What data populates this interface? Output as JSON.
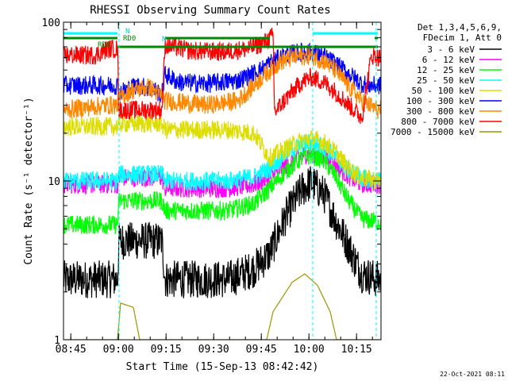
{
  "chart_data": {
    "type": "line",
    "title": "RHESSI Observing Summary Count Rates",
    "xlabel": "Start Time (15-Sep-13 08:42:42)",
    "ylabel": "Count Rate (s⁻¹ detector⁻¹)",
    "yscale": "log",
    "ylim": [
      1,
      100
    ],
    "xlim_minutes": [
      0,
      100
    ],
    "x_ticks": [
      {
        "label": "08:45",
        "value": 2.3
      },
      {
        "label": "09:00",
        "value": 17.3
      },
      {
        "label": "09:15",
        "value": 32.3
      },
      {
        "label": "09:30",
        "value": 47.3
      },
      {
        "label": "09:45",
        "value": 62.3
      },
      {
        "label": "10:00",
        "value": 77.3
      },
      {
        "label": "10:15",
        "value": 92.3
      }
    ],
    "y_ticks": [
      {
        "label": "1",
        "value": 1
      },
      {
        "label": "10",
        "value": 10
      },
      {
        "label": "100",
        "value": 100
      }
    ],
    "legend": {
      "header": [
        "Det 1,3,4,5,6,9,",
        "FDecim 1, Att 0"
      ],
      "placement": "right"
    },
    "series": [
      {
        "name": "3 - 6 keV",
        "color": "#000000",
        "points": [
          [
            0,
            2.4
          ],
          [
            17,
            2.4
          ],
          [
            17.5,
            4.2
          ],
          [
            31,
            4.2
          ],
          [
            32,
            2.4
          ],
          [
            52,
            2.4
          ],
          [
            60,
            2.8
          ],
          [
            65,
            3.5
          ],
          [
            70,
            6
          ],
          [
            75,
            8.8
          ],
          [
            78,
            9.8
          ],
          [
            82,
            8.3
          ],
          [
            86,
            5.5
          ],
          [
            89,
            4.2
          ],
          [
            92,
            3.1
          ],
          [
            94,
            2.6
          ],
          [
            99,
            2.4
          ]
        ]
      },
      {
        "name": "6 - 12 keV",
        "color": "#ff00ff",
        "points": [
          [
            0,
            9.5
          ],
          [
            17,
            9.5
          ],
          [
            17.5,
            10.5
          ],
          [
            31,
            10.5
          ],
          [
            32,
            9
          ],
          [
            52,
            9
          ],
          [
            60,
            9.5
          ],
          [
            65,
            10.5
          ],
          [
            70,
            12.5
          ],
          [
            75,
            14.5
          ],
          [
            78,
            15
          ],
          [
            82,
            14.2
          ],
          [
            86,
            12.5
          ],
          [
            89,
            11
          ],
          [
            92,
            10
          ],
          [
            94,
            9.6
          ],
          [
            99,
            9.5
          ]
        ]
      },
      {
        "name": "12 - 25 keV",
        "color": "#00ff00",
        "points": [
          [
            0,
            5.3
          ],
          [
            17,
            5.3
          ],
          [
            17.5,
            7.5
          ],
          [
            31,
            7.5
          ],
          [
            32,
            6.5
          ],
          [
            52,
            6.5
          ],
          [
            60,
            7.2
          ],
          [
            65,
            9
          ],
          [
            70,
            11.5
          ],
          [
            75,
            14
          ],
          [
            78,
            14.5
          ],
          [
            82,
            13.5
          ],
          [
            86,
            10.5
          ],
          [
            89,
            8
          ],
          [
            92,
            6.5
          ],
          [
            94,
            5.8
          ],
          [
            99,
            5.5
          ]
        ]
      },
      {
        "name": "25 - 50 keV",
        "color": "#00ffff",
        "points": [
          [
            0,
            10
          ],
          [
            17,
            10
          ],
          [
            17.5,
            11
          ],
          [
            31,
            11
          ],
          [
            32,
            10
          ],
          [
            52,
            10
          ],
          [
            60,
            10.6
          ],
          [
            65,
            12
          ],
          [
            70,
            15
          ],
          [
            75,
            17
          ],
          [
            78,
            17.5
          ],
          [
            82,
            16.5
          ],
          [
            86,
            14
          ],
          [
            89,
            12
          ],
          [
            92,
            11
          ],
          [
            94,
            10.4
          ],
          [
            99,
            10
          ]
        ]
      },
      {
        "name": "50 - 100 keV",
        "color": "#dddd00",
        "points": [
          [
            0,
            22
          ],
          [
            17,
            22
          ],
          [
            17.5,
            23
          ],
          [
            31,
            23
          ],
          [
            32,
            21
          ],
          [
            52,
            21
          ],
          [
            60,
            20
          ],
          [
            65,
            14
          ],
          [
            70,
            16
          ],
          [
            75,
            18
          ],
          [
            78,
            18.5
          ],
          [
            82,
            17.5
          ],
          [
            86,
            15
          ],
          [
            89,
            12.5
          ],
          [
            92,
            11
          ],
          [
            94,
            10.5
          ],
          [
            99,
            10
          ]
        ]
      },
      {
        "name": "100 - 300 keV",
        "color": "#0000ff",
        "points": [
          [
            0,
            40
          ],
          [
            14,
            40
          ],
          [
            17,
            40
          ],
          [
            17.5,
            36
          ],
          [
            23,
            40
          ],
          [
            28,
            38
          ],
          [
            31,
            35
          ],
          [
            32,
            47
          ],
          [
            36,
            42
          ],
          [
            45,
            41
          ],
          [
            55,
            43
          ],
          [
            62,
            50
          ],
          [
            66,
            57
          ],
          [
            70,
            62
          ],
          [
            74,
            64.5
          ],
          [
            78,
            65
          ],
          [
            82,
            61
          ],
          [
            86,
            54
          ],
          [
            90,
            47
          ],
          [
            94,
            41
          ],
          [
            97,
            40
          ],
          [
            99,
            40
          ]
        ]
      },
      {
        "name": "300 - 800 keV",
        "color": "#ff8800",
        "points": [
          [
            0,
            28
          ],
          [
            14,
            30
          ],
          [
            17,
            30
          ],
          [
            17.5,
            33
          ],
          [
            21,
            37
          ],
          [
            27,
            39
          ],
          [
            31,
            34
          ],
          [
            32,
            32
          ],
          [
            45,
            30
          ],
          [
            55,
            32
          ],
          [
            60,
            40
          ],
          [
            64,
            48
          ],
          [
            68,
            56
          ],
          [
            72,
            60
          ],
          [
            75,
            61
          ],
          [
            78,
            61.5
          ],
          [
            82,
            57
          ],
          [
            86,
            49
          ],
          [
            90,
            39
          ],
          [
            94,
            32
          ],
          [
            99,
            28
          ]
        ]
      },
      {
        "name": "800 - 7000 keV",
        "color": "#ff0000",
        "points": [
          [
            0,
            62
          ],
          [
            10,
            62
          ],
          [
            14,
            68
          ],
          [
            17,
            68
          ],
          [
            17.5,
            28
          ],
          [
            31,
            28
          ],
          [
            32,
            72
          ],
          [
            40,
            66
          ],
          [
            50,
            65
          ],
          [
            58,
            68
          ],
          [
            63,
            74
          ],
          [
            66,
            82
          ],
          [
            66.5,
            27
          ],
          [
            70,
            33
          ],
          [
            75,
            42
          ],
          [
            78,
            45
          ],
          [
            82,
            42
          ],
          [
            86,
            36
          ],
          [
            90,
            30
          ],
          [
            94,
            25
          ],
          [
            97,
            62
          ],
          [
            99,
            60
          ]
        ]
      },
      {
        "name": "7000 - 15000 keV",
        "color": "#999900",
        "points": [
          [
            0,
            1
          ],
          [
            17,
            1
          ],
          [
            18,
            1.7
          ],
          [
            22,
            1.6
          ],
          [
            24,
            1
          ],
          [
            64,
            1
          ],
          [
            66,
            1.5
          ],
          [
            72,
            2.3
          ],
          [
            76,
            2.6
          ],
          [
            80,
            2.2
          ],
          [
            84,
            1.5
          ],
          [
            86,
            1
          ],
          [
            99,
            1
          ]
        ]
      }
    ],
    "annotations": {
      "flags": [
        {
          "label": "N",
          "color": "#00cccc"
        },
        {
          "label": "RD0",
          "color": "#008800"
        },
        {
          "label": "RD0",
          "color": "#008800"
        },
        {
          "label": "N",
          "color": "#00cccc"
        }
      ],
      "night_bars": [
        [
          0,
          17
        ],
        [
          78.5,
          99
        ]
      ],
      "saa_bars": [
        [
          0,
          17
        ],
        [
          32,
          65
        ],
        [
          98,
          99
        ]
      ],
      "decim_bars": [
        [
          17,
          99
        ]
      ],
      "night_lines": [
        17.5,
        78.5,
        98.5
      ]
    }
  },
  "footer": {
    "timestamp": "22-Oct-2021 08:11"
  }
}
